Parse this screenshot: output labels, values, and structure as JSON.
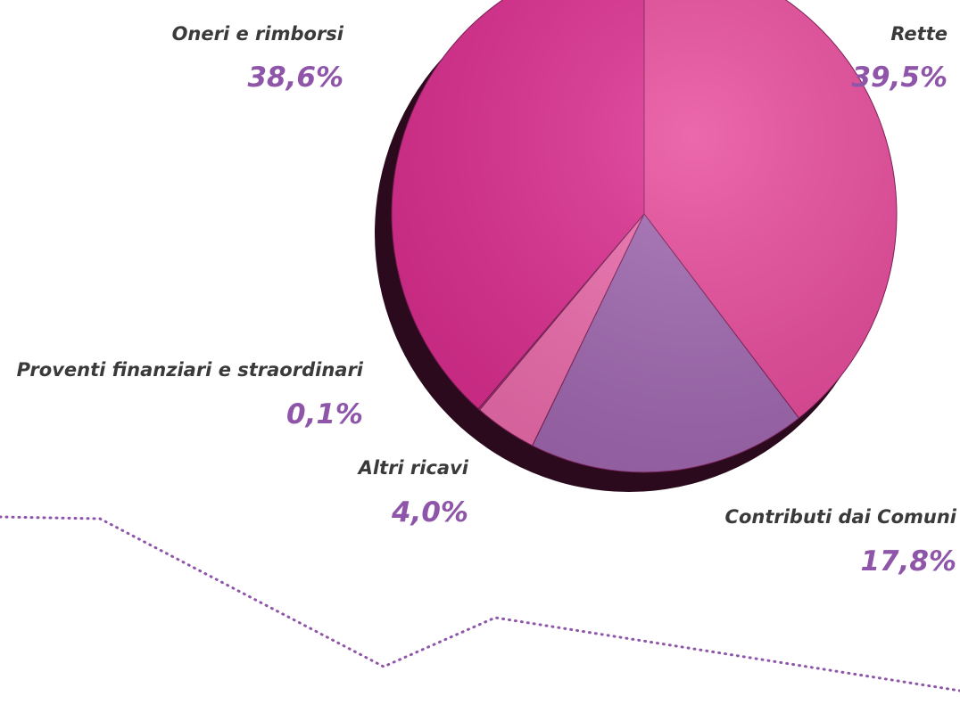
{
  "chart_data": {
    "type": "pie",
    "categories": [
      "Rette",
      "Contributi dai Comuni",
      "Altri ricavi",
      "Proventi finanziari e straordinari",
      "Oneri e rimborsi"
    ],
    "values": [
      39.5,
      17.8,
      4.0,
      0.1,
      38.6
    ],
    "value_labels": [
      "39,5%",
      "17,8%",
      "4,0%",
      "0,1%",
      "38,6%"
    ],
    "colors": [
      "#e8479a",
      "#a066b0",
      "#ee6aac",
      "#c03a8a",
      "#dd2a8e"
    ]
  }
}
